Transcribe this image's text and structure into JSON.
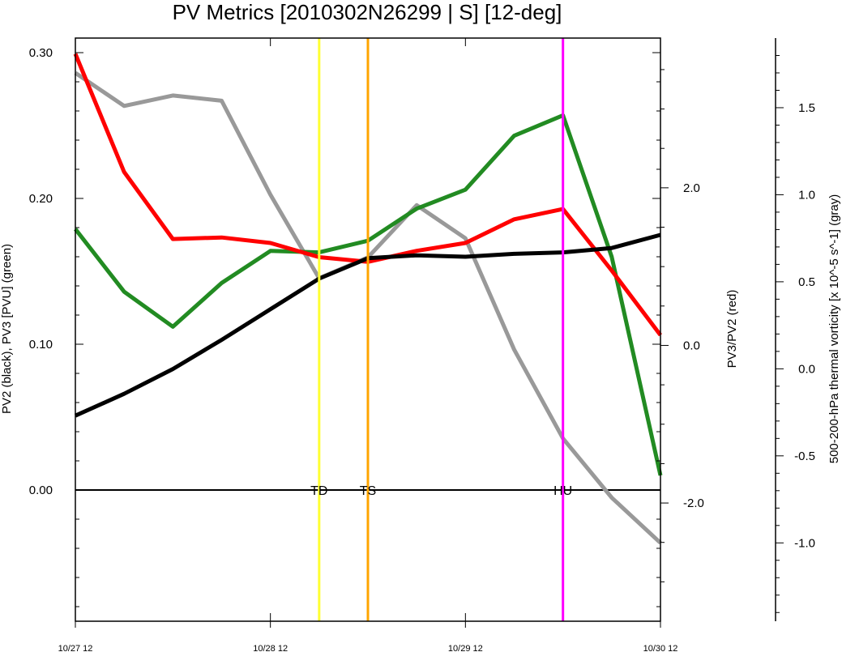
{
  "chart_data": {
    "type": "line",
    "title": "PV Metrics [2010302N26299 | S] [12-deg]",
    "x_tick_labels": [
      "10/27 12",
      "10/28 12",
      "10/29 12",
      "10/30 12"
    ],
    "x_values": [
      0,
      0.25,
      0.5,
      0.75,
      1.0,
      1.25,
      1.5,
      1.75,
      2.0,
      2.25,
      2.5,
      2.75,
      3.0
    ],
    "axes": {
      "left": {
        "label": "PV2 (black), PV3 [PVU] (green)",
        "ylim": [
          -0.09,
          0.31
        ],
        "tick_values": [
          0.0,
          0.1,
          0.2,
          0.3
        ],
        "tick_labels": [
          "0.00",
          "0.10",
          "0.20",
          "0.30"
        ]
      },
      "right1": {
        "label": "PV3/PV2 (red)",
        "ylim": [
          -3.5,
          3.9
        ],
        "tick_values": [
          -2.0,
          0.0,
          2.0
        ],
        "tick_labels": [
          "-2.0",
          "0.0",
          "2.0"
        ]
      },
      "right2": {
        "label": "500-200-hPa thermal vorticity [x 10^-5 s^-1] (gray)",
        "ylim": [
          -1.45,
          1.9
        ],
        "tick_values": [
          -1.0,
          -0.5,
          0.0,
          0.5,
          1.0,
          1.5
        ],
        "tick_labels": [
          "-1.0",
          "-0.5",
          "0.0",
          "0.5",
          "1.0",
          "1.5"
        ]
      }
    },
    "series": [
      {
        "axis": "right2",
        "color": "#999999",
        "values": [
          1.7,
          1.51,
          1.57,
          1.54,
          1.0,
          0.52,
          0.64,
          0.94,
          0.75,
          0.11,
          -0.4,
          -0.74,
          -1.0
        ]
      },
      {
        "axis": "left",
        "color": "#228b22",
        "values": [
          0.179,
          0.136,
          0.112,
          0.142,
          0.164,
          0.163,
          0.171,
          0.193,
          0.206,
          0.243,
          0.257,
          0.16,
          0.01
        ]
      },
      {
        "axis": "right1",
        "color": "#ff0000",
        "values": [
          3.7,
          2.2,
          1.35,
          1.37,
          1.3,
          1.12,
          1.06,
          1.2,
          1.3,
          1.6,
          1.73,
          0.95,
          0.13
        ]
      },
      {
        "axis": "left",
        "color": "#000000",
        "values": [
          0.051,
          0.066,
          0.083,
          0.103,
          0.124,
          0.145,
          0.159,
          0.161,
          0.16,
          0.162,
          0.163,
          0.166,
          0.175
        ]
      }
    ],
    "stage_markers": [
      {
        "label": "TD",
        "x": 1.25,
        "color": "#ffff33"
      },
      {
        "label": "TS",
        "x": 1.5,
        "color": "#ffa500"
      },
      {
        "label": "HU",
        "x": 2.5,
        "color": "#ff00ff"
      }
    ],
    "zero_line": true,
    "grid": false,
    "legend": "none"
  }
}
